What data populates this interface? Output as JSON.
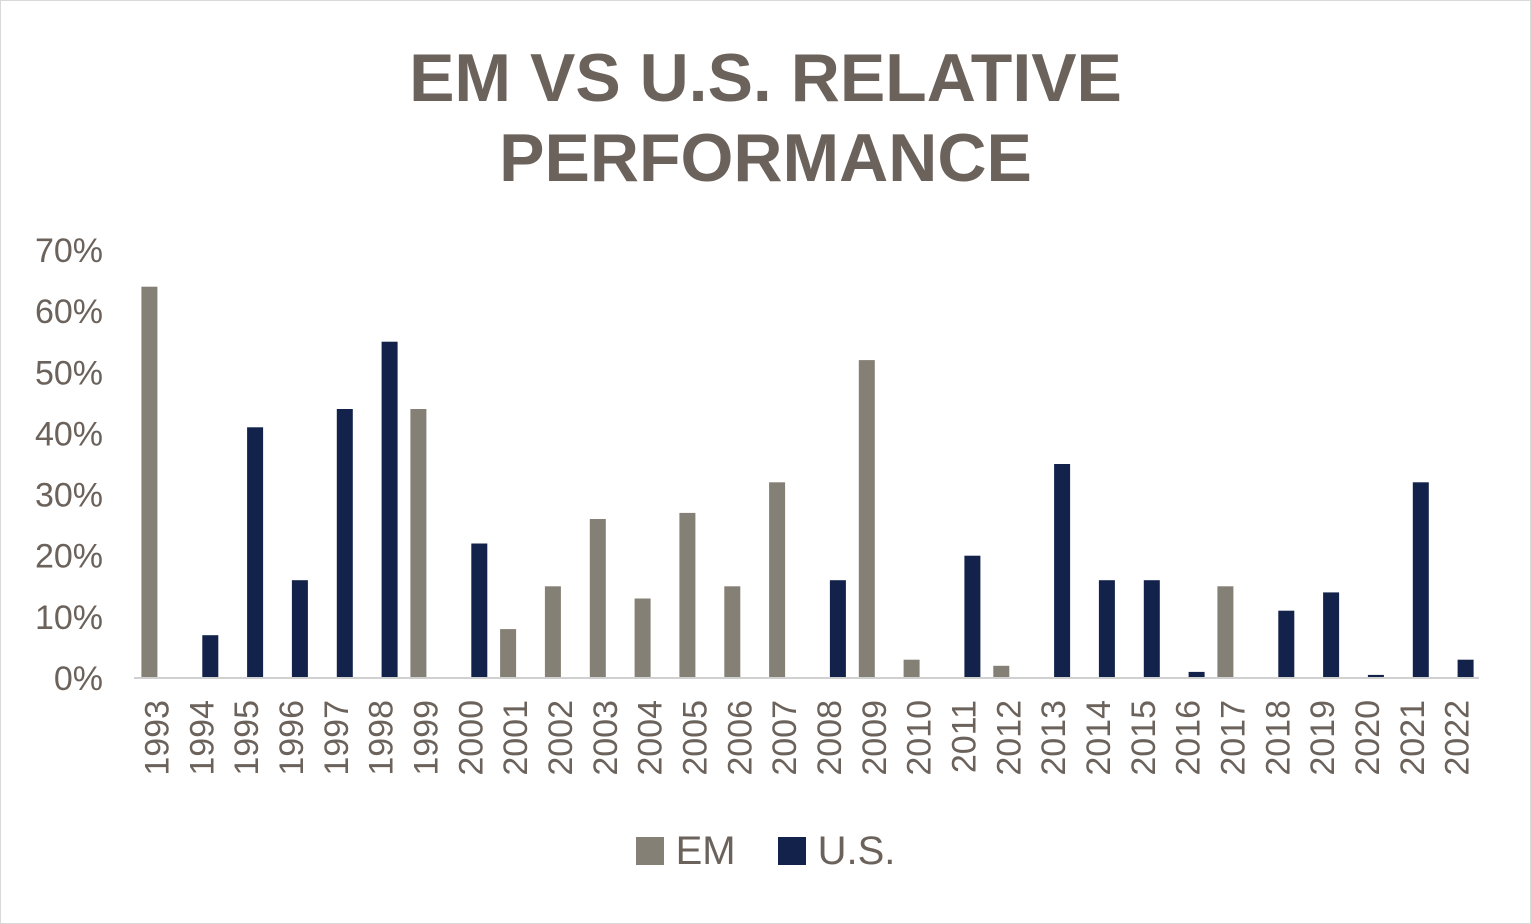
{
  "chart_data": {
    "type": "bar",
    "title_lines": [
      "EM VS U.S. RELATIVE",
      "PERFORMANCE"
    ],
    "categories": [
      "1993",
      "1994",
      "1995",
      "1996",
      "1997",
      "1998",
      "1999",
      "2000",
      "2001",
      "2002",
      "2003",
      "2004",
      "2005",
      "2006",
      "2007",
      "2008",
      "2009",
      "2010",
      "2011",
      "2012",
      "2013",
      "2014",
      "2015",
      "2016",
      "2017",
      "2018",
      "2019",
      "2020",
      "2021",
      "2022"
    ],
    "series": [
      {
        "name": "EM",
        "color": "#858075",
        "values": [
          64,
          null,
          null,
          null,
          null,
          null,
          44,
          null,
          8,
          15,
          26,
          13,
          27,
          15,
          32,
          null,
          52,
          3,
          null,
          2,
          null,
          null,
          null,
          null,
          15,
          null,
          null,
          null,
          null,
          null
        ]
      },
      {
        "name": "U.S.",
        "color": "#13224a",
        "values": [
          null,
          7,
          41,
          16,
          44,
          55,
          null,
          22,
          null,
          null,
          null,
          null,
          null,
          null,
          null,
          16,
          null,
          null,
          20,
          null,
          35,
          16,
          16,
          1,
          null,
          11,
          14,
          0.5,
          32,
          3
        ]
      }
    ],
    "y_ticks": [
      "0%",
      "10%",
      "20%",
      "30%",
      "40%",
      "50%",
      "60%",
      "70%"
    ],
    "ylim": [
      0,
      70
    ],
    "y_unit": "%",
    "grid": false,
    "legend_position": "bottom"
  }
}
